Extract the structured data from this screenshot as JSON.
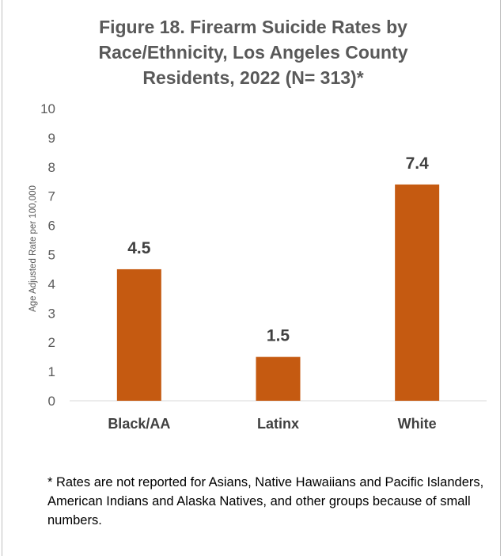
{
  "chart_data": {
    "type": "bar",
    "title_lines": [
      "Figure 18. Firearm Suicide Rates by",
      "Race/Ethnicity, Los Angeles County",
      "Residents, 2022 (N= 313)*"
    ],
    "ylabel": "Age Adjusted Rate per 100,000",
    "xlabel": "",
    "categories": [
      "Black/AA",
      "Latinx",
      "White"
    ],
    "values": [
      4.5,
      1.5,
      7.4
    ],
    "data_labels": [
      "4.5",
      "1.5",
      "7.4"
    ],
    "ylim": [
      0,
      10
    ],
    "yticks": [
      0,
      1,
      2,
      3,
      4,
      5,
      6,
      7,
      8,
      9,
      10
    ],
    "grid": false,
    "legend": "none",
    "bar_color": "#c55a11"
  },
  "footnote": "* Rates are not reported for Asians, Native Hawaiians and Pacific Islanders, American Indians and Alaska Natives, and other groups because of small numbers."
}
